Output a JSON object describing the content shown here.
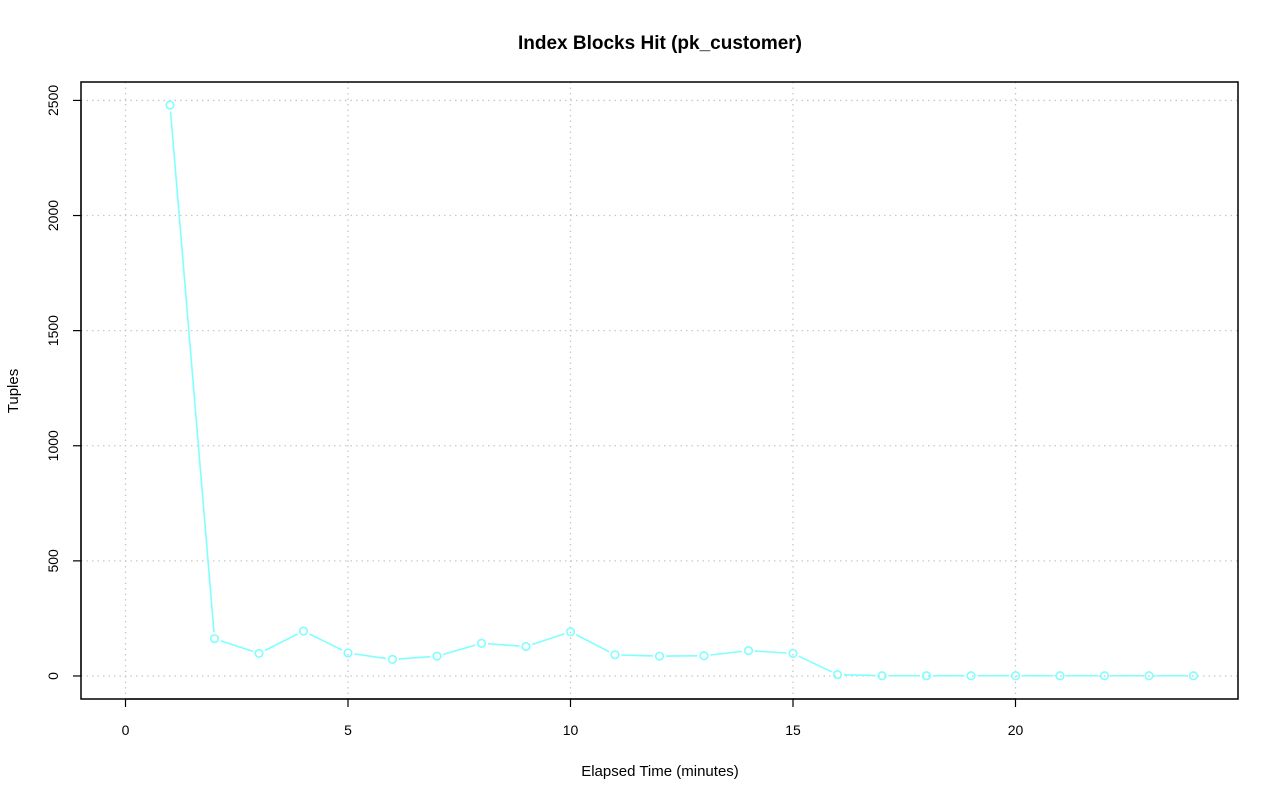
{
  "chart_data": {
    "type": "line",
    "title": "Index Blocks Hit (pk_customer)",
    "xlabel": "Elapsed Time (minutes)",
    "ylabel": "Tuples",
    "xlim": [
      -1,
      25
    ],
    "ylim": [
      -100,
      2580
    ],
    "x_ticks": [
      0,
      5,
      10,
      15,
      20
    ],
    "y_ticks": [
      0,
      500,
      1000,
      1500,
      2000,
      2500
    ],
    "grid": true,
    "legend": "none",
    "series": [
      {
        "color": "#7fffff",
        "marker": "open-circle",
        "x": [
          1,
          2,
          3,
          4,
          5,
          6,
          7,
          8,
          9,
          10,
          11,
          12,
          13,
          14,
          15,
          16,
          17,
          18,
          19,
          20,
          21,
          22,
          23,
          24
        ],
        "y": [
          2480,
          162,
          98,
          195,
          100,
          72,
          86,
          142,
          128,
          192,
          92,
          86,
          88,
          110,
          98,
          6,
          1,
          1,
          1,
          1,
          1,
          1,
          1,
          1
        ]
      }
    ]
  }
}
